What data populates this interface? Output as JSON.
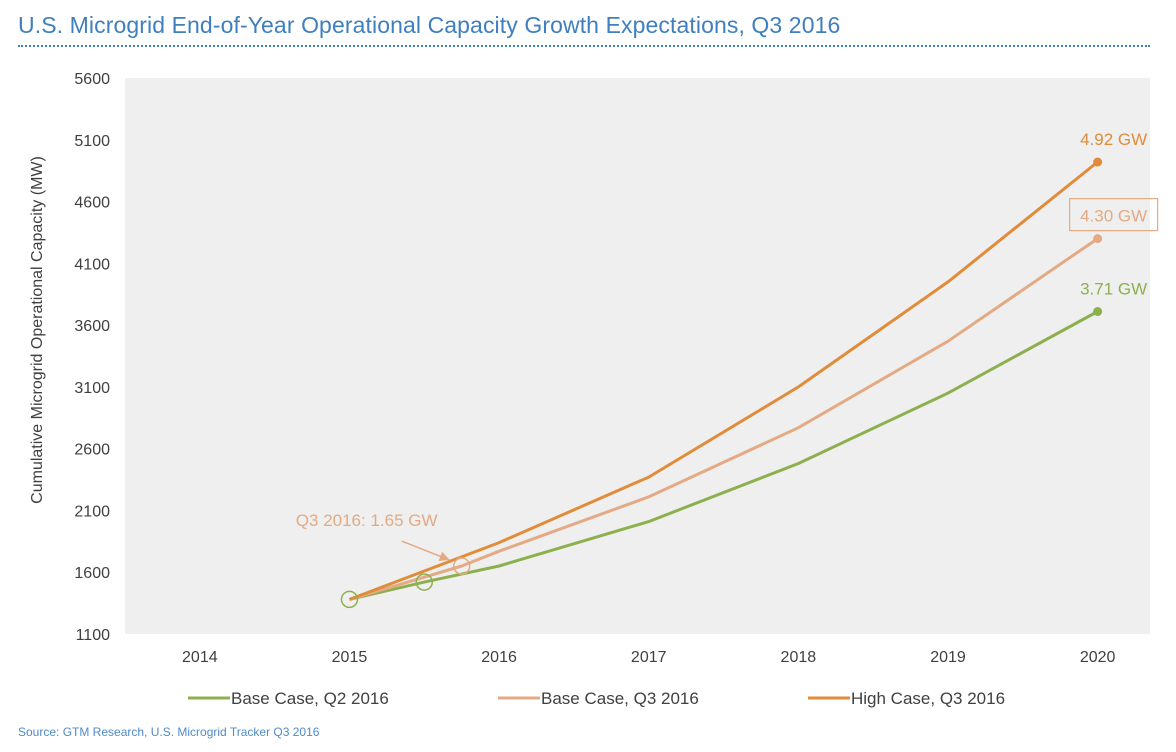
{
  "chart_data": {
    "type": "line",
    "title": "U.S. Microgrid End-of-Year Operational Capacity Growth Expectations, Q3 2016",
    "ylabel": "Cumulative Microgrid Operational Capacity (MW)",
    "xlabel": "",
    "x_ticks": [
      "2014",
      "2015",
      "2016",
      "2017",
      "2018",
      "2019",
      "2020"
    ],
    "y_ticks": [
      1100,
      1600,
      2100,
      2600,
      3100,
      3600,
      4100,
      4600,
      5100,
      5600
    ],
    "xlim": [
      2013.5,
      2020.35
    ],
    "ylim": [
      1100,
      5600
    ],
    "legend_position": "bottom",
    "series": [
      {
        "name": "Base Case, Q2 2016",
        "color": "#8db04e",
        "points": [
          [
            2015,
            1380
          ],
          [
            2015.5,
            1520
          ],
          [
            2016,
            1650
          ],
          [
            2017,
            2010
          ],
          [
            2018,
            2480
          ],
          [
            2019,
            3050
          ],
          [
            2020,
            3710
          ]
        ]
      },
      {
        "name": "Base Case, Q3 2016",
        "color": "#e3aa84",
        "points": [
          [
            2015,
            1380
          ],
          [
            2015.75,
            1650
          ],
          [
            2016,
            1770
          ],
          [
            2017,
            2210
          ],
          [
            2018,
            2770
          ],
          [
            2019,
            3470
          ],
          [
            2020,
            4300
          ]
        ]
      },
      {
        "name": "High Case, Q3 2016",
        "color": "#e08c3a",
        "points": [
          [
            2015,
            1380
          ],
          [
            2016,
            1840
          ],
          [
            2017,
            2370
          ],
          [
            2018,
            3100
          ],
          [
            2019,
            3950
          ],
          [
            2020,
            4920
          ]
        ]
      }
    ],
    "annotations": [
      {
        "text": "4.92 GW",
        "x": 2020,
        "y": 4920,
        "color": "#e08c3a",
        "boxed": false
      },
      {
        "text": "4.30 GW",
        "x": 2020,
        "y": 4300,
        "color": "#e3aa84",
        "boxed": true
      },
      {
        "text": "3.71 GW",
        "x": 2020,
        "y": 3710,
        "color": "#8db04e",
        "boxed": false
      },
      {
        "text": "Q3 2016: 1.65 GW",
        "x": 2015.75,
        "y": 1650,
        "color": "#e3aa84",
        "arrow": true
      }
    ],
    "markers": [
      {
        "x": 2015,
        "y": 1380,
        "color": "#8db04e"
      },
      {
        "x": 2015.5,
        "y": 1520,
        "color": "#8db04e"
      },
      {
        "x": 2015.75,
        "y": 1650,
        "color": "#e3aa84"
      }
    ],
    "source": "Source: GTM Research, U.S. Microgrid Tracker Q3 2016"
  }
}
